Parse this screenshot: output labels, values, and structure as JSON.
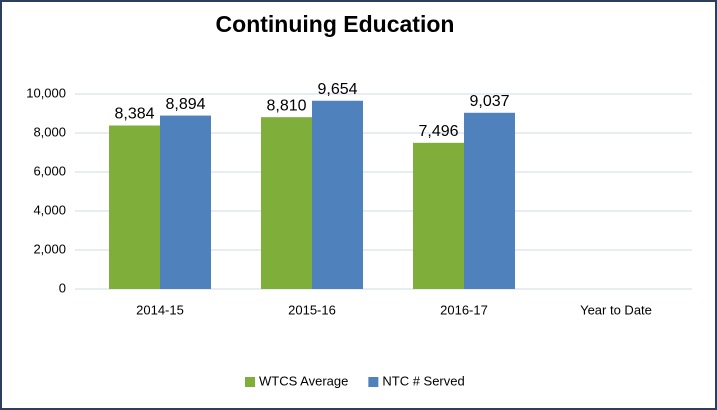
{
  "chart_data": {
    "type": "bar",
    "title": "Continuing Education",
    "categories": [
      "2014-15",
      "2015-16",
      "2016-17",
      "Year to Date"
    ],
    "series": [
      {
        "name": "WTCS Average",
        "color": "#7fae3a",
        "values": [
          8384,
          8810,
          7496,
          null
        ],
        "value_labels": [
          "8,384",
          "8,810",
          "7,496",
          null
        ]
      },
      {
        "name": "NTC # Served",
        "color": "#4f81bd",
        "values": [
          8894,
          9654,
          9037,
          null
        ],
        "value_labels": [
          "8,894",
          "9,654",
          "9,037",
          null
        ]
      }
    ],
    "ylim": [
      0,
      10000
    ],
    "yticks": [
      0,
      {
        "value": 2000,
        "label": "2,000"
      },
      {
        "value": 4000,
        "label": "4,000"
      },
      {
        "value": 6000,
        "label": "6,000"
      },
      {
        "value": 8000,
        "label": "8,000"
      },
      {
        "value": 10000,
        "label": "10,000"
      }
    ],
    "grid": true,
    "legend": "bottom"
  }
}
